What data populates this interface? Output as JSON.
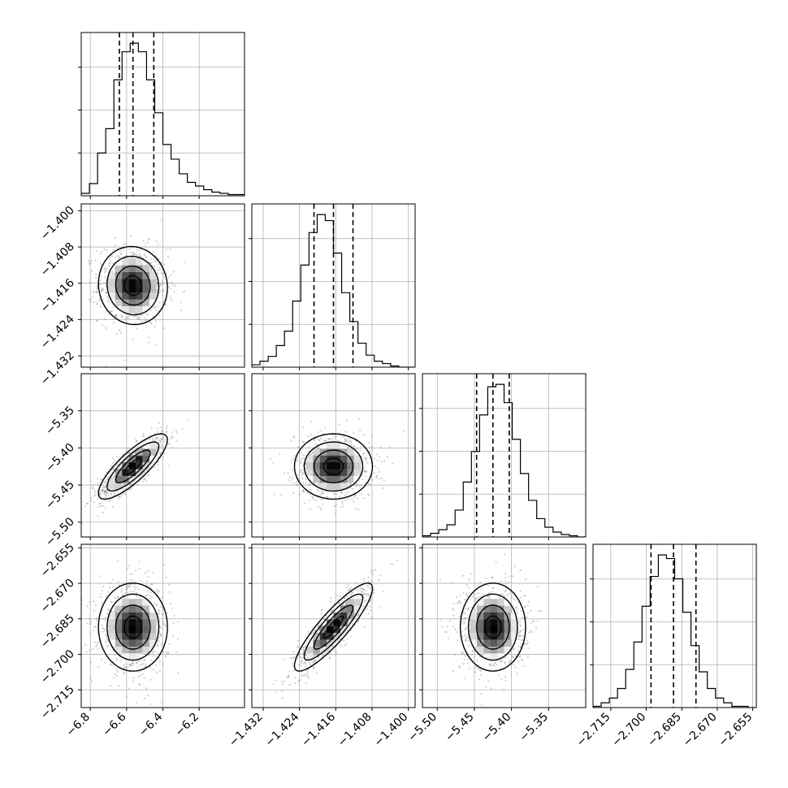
{
  "chart_data": {
    "type": "corner",
    "params": [
      {
        "range": [
          -6.85,
          -5.95
        ],
        "ticks": [
          -6.8,
          -6.6,
          -6.4,
          -6.2
        ],
        "tick_labels": [
          "−6.8",
          "−6.6",
          "−6.4",
          "−6.2"
        ],
        "median": -6.565,
        "q16": -6.64,
        "q84": -6.45,
        "sigma": 0.095
      },
      {
        "range": [
          -1.4345,
          -1.3985
        ],
        "ticks": [
          -1.432,
          -1.424,
          -1.416,
          -1.408,
          -1.4
        ],
        "tick_labels": [
          "−1.432",
          "−1.424",
          "−1.416",
          "−1.408",
          "−1.400"
        ],
        "median": -1.4165,
        "q16": -1.4208,
        "q84": -1.4122,
        "sigma": 0.0043
      },
      {
        "range": [
          -5.52,
          -5.3
        ],
        "ticks": [
          -5.5,
          -5.45,
          -5.4,
          -5.35
        ],
        "tick_labels": [
          "−5.50",
          "−5.45",
          "−5.40",
          "−5.35"
        ],
        "median": -5.425,
        "q16": -5.447,
        "q84": -5.403,
        "sigma": 0.022
      },
      {
        "range": [
          -2.7225,
          -2.6535
        ],
        "ticks": [
          -2.715,
          -2.7,
          -2.685,
          -2.67,
          -2.655
        ],
        "tick_labels": [
          "−2.715",
          "−2.700",
          "−2.685",
          "−2.670",
          "−2.655"
        ],
        "median": -2.6885,
        "q16": -2.698,
        "q84": -2.679,
        "sigma": 0.0093
      }
    ],
    "histograms": [
      {
        "param": 0,
        "bins": 20,
        "counts": [
          2,
          10,
          35,
          55,
          95,
          118,
          125,
          118,
          95,
          68,
          42,
          30,
          18,
          11,
          8,
          5,
          3,
          2,
          1,
          1
        ]
      },
      {
        "param": 1,
        "bins": 20,
        "counts": [
          2,
          5,
          9,
          18,
          30,
          55,
          85,
          112,
          127,
          122,
          95,
          62,
          38,
          20,
          10,
          5,
          3,
          1,
          0,
          0
        ]
      },
      {
        "param": 2,
        "bins": 20,
        "counts": [
          1,
          3,
          6,
          10,
          22,
          45,
          70,
          100,
          123,
          125,
          110,
          80,
          52,
          30,
          15,
          8,
          4,
          2,
          1,
          0
        ]
      },
      {
        "param": 3,
        "bins": 20,
        "counts": [
          1,
          4,
          8,
          16,
          32,
          55,
          85,
          110,
          128,
          125,
          108,
          80,
          52,
          30,
          16,
          8,
          4,
          1,
          1,
          0
        ]
      }
    ],
    "correlations": {
      "0-1": -0.05,
      "0-2": 0.82,
      "1-2": 0.0,
      "0-3": 0.0,
      "1-3": 0.88,
      "2-3": 0.0
    },
    "grid": true,
    "title": "",
    "legend": "none"
  }
}
